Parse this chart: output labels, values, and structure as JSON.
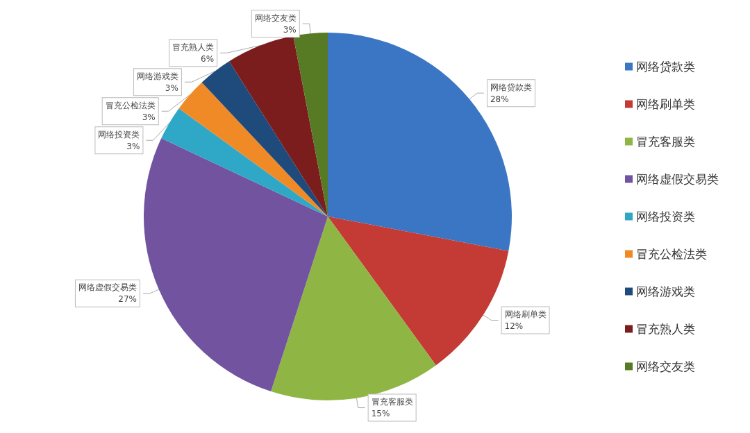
{
  "chart_data": {
    "type": "pie",
    "categories": [
      "网络贷款类",
      "网络刷单类",
      "冒充客服类",
      "网络虚假交易类",
      "网络投资类",
      "冒充公检法类",
      "网络游戏类",
      "冒充熟人类",
      "网络交友类"
    ],
    "values": [
      28,
      12,
      15,
      27,
      3,
      3,
      3,
      6,
      3
    ],
    "value_labels": [
      "28%",
      "12%",
      "15%",
      "27%",
      "3%",
      "3%",
      "3%",
      "6%",
      "3%"
    ],
    "colors": [
      "#3b76c5",
      "#c43b36",
      "#8fb644",
      "#7253a0",
      "#2fa8c8",
      "#f08a26",
      "#1f4a7c",
      "#7b1d1d",
      "#577b25"
    ],
    "legend": "right"
  }
}
